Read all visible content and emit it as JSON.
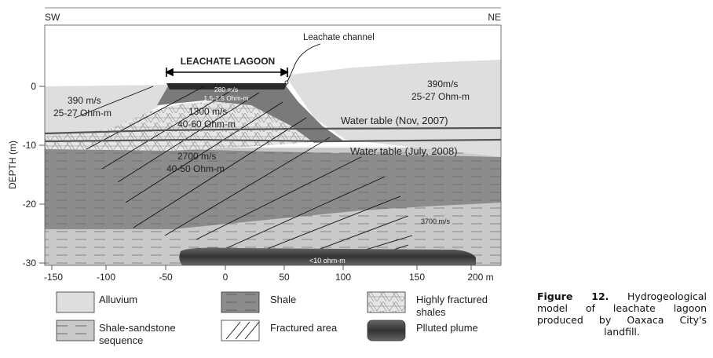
{
  "orientation": {
    "left": "SW",
    "right": "NE"
  },
  "yaxis": {
    "label": "DEPTH  (m)",
    "ticks": [
      "0",
      "-10",
      "-20",
      "-30"
    ]
  },
  "xaxis": {
    "ticks": [
      "-150",
      "-100",
      "-50",
      "0",
      "50",
      "100",
      "150",
      "200 m"
    ]
  },
  "annotations": {
    "lagoon_title": "LEACHATE LAGOON",
    "channel": "Leachate channel",
    "wt_nov": "Water table (Nov, 2007)",
    "wt_jul": "Water table (July, 2008)"
  },
  "layer_labels": {
    "left_alluvium_v": "390 m/s",
    "left_alluvium_r": "25-27 Ohm-m",
    "right_alluvium_v": "390m/s",
    "right_alluvium_r": "25-27 Ohm-m",
    "lagoon_v": "280 m/s",
    "lagoon_r": "1.5-2.5 Ohm-m",
    "fractured_v": "1300 m/s",
    "fractured_r": "40-60 Ohm-m",
    "shale_v": "2700 m/s",
    "shale_r": "40-50 Ohm-m",
    "deep_v": "3700 m/s",
    "plume_r": "<10 ohm-m"
  },
  "legend": [
    {
      "key": "alluvium",
      "label": "Alluvium",
      "label2": ""
    },
    {
      "key": "shale",
      "label": "Shale",
      "label2": ""
    },
    {
      "key": "highly_fractured",
      "label": "Highly fractured",
      "label2": "shales"
    },
    {
      "key": "shale_sandstone",
      "label": "Shale-sandstone",
      "label2": "sequence"
    },
    {
      "key": "fractured_area",
      "label": "Fractured area",
      "label2": ""
    },
    {
      "key": "plume",
      "label": "Plluted plume",
      "label2": ""
    }
  ],
  "caption": {
    "label": "Figure 12.",
    "text": " Hydrogeological model of leachate lagoon produced by Oaxaca City's landfill."
  },
  "colors": {
    "alluvium": "#dedede",
    "shale": "#8c8c8c",
    "shale_sandstone": "#c9c9c9",
    "highly_fractured": "#e6e6e6",
    "plume": "#4a4a4a",
    "lagoon": "#2a2a2a"
  }
}
